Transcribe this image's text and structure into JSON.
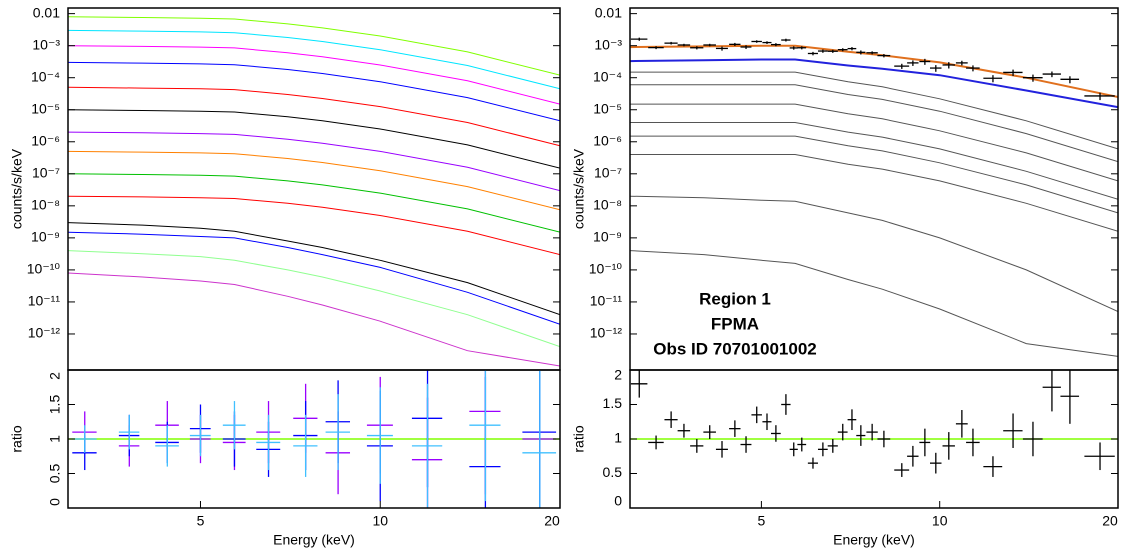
{
  "chart_data": [
    {
      "type": "line",
      "ylabel": "counts/s/keV",
      "log_x": true,
      "log_y": true,
      "xlim": [
        3,
        20
      ],
      "ylim": [
        7.5e-14,
        0.015
      ],
      "yticks": [
        0.01,
        {
          "value": 0.001,
          "label": "10⁻³"
        },
        {
          "value": 0.0001,
          "label": "10⁻⁴"
        },
        {
          "value": 1e-05,
          "label": "10⁻⁵"
        },
        {
          "value": 1e-06,
          "label": "10⁻⁶"
        },
        {
          "value": 1e-07,
          "label": "10⁻⁷"
        },
        {
          "value": 1e-08,
          "label": "10⁻⁸"
        },
        {
          "value": 1e-09,
          "label": "10⁻⁹"
        },
        {
          "value": 1e-10,
          "label": "10⁻¹⁰"
        },
        {
          "value": 1e-11,
          "label": "10⁻¹¹"
        },
        {
          "value": 1e-12,
          "label": "10⁻¹²"
        }
      ],
      "x": [
        3,
        4,
        5,
        5.7,
        7,
        8,
        10,
        14,
        20
      ],
      "series": [
        {
          "color": "#80ff00",
          "values": [
            0.008,
            0.0076,
            0.0072,
            0.0068,
            0.0048,
            0.0036,
            0.002,
            0.00064,
            0.00012
          ]
        },
        {
          "color": "#00e5ff",
          "values": [
            0.003,
            0.00285,
            0.0027,
            0.00255,
            0.0018,
            0.00135,
            0.00075,
            0.00024,
            4.5e-05
          ]
        },
        {
          "color": "#ff00ff",
          "values": [
            0.001,
            0.00095,
            0.0009,
            0.00085,
            0.0006,
            0.00045,
            0.00025,
            8e-05,
            1.5e-05
          ]
        },
        {
          "color": "#0000ff",
          "values": [
            0.0003,
            0.000285,
            0.00027,
            0.000255,
            0.00018,
            0.000135,
            7.5e-05,
            2.4e-05,
            4.5e-06
          ]
        },
        {
          "color": "#ff0000",
          "values": [
            5e-05,
            4.75e-05,
            4.5e-05,
            4.25e-05,
            3e-05,
            2.25e-05,
            1.25e-05,
            4e-06,
            7.5e-07
          ]
        },
        {
          "color": "#000000",
          "values": [
            1e-05,
            9.5e-06,
            9e-06,
            8.5e-06,
            6e-06,
            4.5e-06,
            2.5e-06,
            8e-07,
            1.5e-07
          ]
        },
        {
          "color": "#9900ff",
          "values": [
            2e-06,
            1.9e-06,
            1.8e-06,
            1.7e-06,
            1.2e-06,
            9e-07,
            5e-07,
            1.6e-07,
            3e-08
          ]
        },
        {
          "color": "#ff8000",
          "values": [
            5e-07,
            4.75e-07,
            4.5e-07,
            4.25e-07,
            3e-07,
            2.25e-07,
            1.25e-07,
            4e-08,
            7.5e-09
          ]
        },
        {
          "color": "#00c000",
          "values": [
            1e-07,
            9.5e-08,
            9e-08,
            8.5e-08,
            6e-08,
            4.5e-08,
            2.5e-08,
            8e-09,
            1.5e-09
          ]
        },
        {
          "color": "#ff0000",
          "values": [
            2e-08,
            1.9e-08,
            1.8e-08,
            1.7e-08,
            1.2e-08,
            9e-09,
            5e-09,
            1.6e-09,
            3e-10
          ]
        },
        {
          "color": "#000000",
          "values": [
            3e-09,
            2.5e-09,
            2e-09,
            1.6e-09,
            8e-10,
            5e-10,
            2e-10,
            4e-11,
            4e-12
          ]
        },
        {
          "color": "#0000ff",
          "values": [
            1.5e-09,
            1.3e-09,
            1.1e-09,
            1e-09,
            5e-10,
            3e-10,
            1.2e-10,
            2e-11,
            2e-12
          ]
        },
        {
          "color": "#90ff90",
          "values": [
            4e-10,
            3.2e-10,
            2.6e-10,
            2e-10,
            1e-10,
            6e-11,
            2.2e-11,
            4e-12,
            4e-13
          ]
        },
        {
          "color": "#cc33cc",
          "values": [
            8e-11,
            6e-11,
            4.5e-11,
            3.5e-11,
            1.5e-11,
            8e-12,
            2.5e-12,
            3e-13,
            1e-13
          ]
        }
      ]
    },
    {
      "type": "errorbar",
      "ylabel": "ratio",
      "xlabel": "Energy (keV)",
      "log_x": true,
      "xlim": [
        3,
        20
      ],
      "ylim": [
        0,
        2
      ],
      "yticks": [
        0,
        0.5,
        1,
        1.5,
        2
      ],
      "xticks": [
        5,
        10,
        20
      ],
      "reference": {
        "value": 1,
        "color": "#80ff00"
      },
      "x": [
        3.2,
        3.8,
        4.4,
        5,
        5.7,
        6.5,
        7.5,
        8.5,
        10,
        12,
        15,
        18.5
      ],
      "xerr": [
        0.15,
        0.15,
        0.2,
        0.2,
        0.25,
        0.3,
        0.35,
        0.4,
        0.5,
        0.7,
        0.9,
        1.2
      ],
      "series": [
        {
          "color": "#9900ff",
          "values": [
            1.1,
            0.9,
            1.2,
            1.0,
            0.95,
            1.1,
            1.3,
            0.8,
            1.2,
            0.7,
            1.4,
            1.0
          ],
          "errors": [
            0.3,
            0.3,
            0.35,
            0.35,
            0.4,
            0.45,
            0.5,
            0.6,
            0.7,
            0.9,
            1.2,
            1.5
          ]
        },
        {
          "color": "#0000ff",
          "values": [
            0.8,
            1.05,
            0.95,
            1.15,
            1.0,
            0.85,
            1.05,
            1.25,
            0.9,
            1.3,
            0.6,
            1.1
          ],
          "errors": [
            0.25,
            0.3,
            0.3,
            0.35,
            0.4,
            0.4,
            0.5,
            0.6,
            0.8,
            1.0,
            1.3,
            1.6
          ]
        },
        {
          "color": "#40c0ff",
          "values": [
            1.0,
            1.1,
            0.9,
            1.05,
            1.2,
            0.95,
            0.9,
            1.1,
            1.05,
            0.9,
            1.2,
            0.8
          ],
          "errors": [
            0.2,
            0.25,
            0.3,
            0.3,
            0.35,
            0.4,
            0.45,
            0.55,
            0.7,
            0.9,
            1.1,
            1.4
          ]
        }
      ]
    },
    {
      "type": "line",
      "ylabel": "counts/s/keV",
      "log_x": true,
      "log_y": true,
      "xlim": [
        3,
        20
      ],
      "ylim": [
        7.5e-14,
        0.015
      ],
      "yticks": [
        0.01,
        {
          "value": 0.001,
          "label": "10⁻³"
        },
        {
          "value": 0.0001,
          "label": "10⁻⁴"
        },
        {
          "value": 1e-05,
          "label": "10⁻⁵"
        },
        {
          "value": 1e-06,
          "label": "10⁻⁶"
        },
        {
          "value": 1e-07,
          "label": "10⁻⁷"
        },
        {
          "value": 1e-08,
          "label": "10⁻⁸"
        },
        {
          "value": 1e-09,
          "label": "10⁻⁹"
        },
        {
          "value": 1e-10,
          "label": "10⁻¹⁰"
        },
        {
          "value": 1e-11,
          "label": "10⁻¹¹"
        },
        {
          "value": 1e-12,
          "label": "10⁻¹²"
        }
      ],
      "annotations": [
        "Region 1",
        "FPMA",
        "Obs ID 70701001002"
      ],
      "x": [
        3,
        4,
        5,
        5.7,
        7,
        8,
        10,
        14,
        20
      ],
      "series": [
        {
          "color": "#555555",
          "values": [
            0.00015,
            0.00015,
            0.00015,
            0.00015,
            7.5e-05,
            5.2e-05,
            2.2e-05,
            4.5e-06,
            6e-07
          ]
        },
        {
          "color": "#555555",
          "values": [
            6e-05,
            6e-05,
            6e-05,
            6e-05,
            3e-05,
            2.1e-05,
            9e-06,
            1.8e-06,
            2.4e-07
          ]
        },
        {
          "color": "#555555",
          "values": [
            1.5e-05,
            1.5e-05,
            1.5e-05,
            1.5e-05,
            7.5e-06,
            5.2e-06,
            2.2e-06,
            4.5e-07,
            6e-08
          ]
        },
        {
          "color": "#555555",
          "values": [
            4e-06,
            4e-06,
            4e-06,
            4e-06,
            2e-06,
            1.4e-06,
            6e-07,
            1.2e-07,
            1.6e-08
          ]
        },
        {
          "color": "#555555",
          "values": [
            1.5e-06,
            1.5e-06,
            1.5e-06,
            1.5e-06,
            7.5e-07,
            5.2e-07,
            2.2e-07,
            4.5e-08,
            6e-09
          ]
        },
        {
          "color": "#555555",
          "values": [
            4e-07,
            4e-07,
            4e-07,
            4e-07,
            2e-07,
            1.4e-07,
            6e-08,
            1.2e-08,
            1.6e-09
          ]
        },
        {
          "color": "#555555",
          "values": [
            2e-08,
            1.8e-08,
            1.5e-08,
            1.4e-08,
            6e-09,
            3.5e-09,
            1e-09,
            1e-10,
            5e-12
          ]
        },
        {
          "color": "#555555",
          "values": [
            4e-10,
            3e-10,
            2e-10,
            1.6e-10,
            5e-11,
            2.5e-11,
            6e-12,
            5e-13,
            2e-13
          ]
        },
        {
          "color": "#2222dd",
          "values": [
            0.00033,
            0.00035,
            0.00037,
            0.00037,
            0.00024,
            0.00019,
            0.00012,
            4e-05,
            1.2e-05
          ]
        },
        {
          "color": "#e0701e",
          "values": [
            0.0009,
            0.00095,
            0.001,
            0.001,
            0.00065,
            0.0005,
            0.0003,
            0.0001,
            2.5e-05
          ]
        }
      ],
      "points": {
        "color": "#000000",
        "x": [
          3.11,
          3.32,
          3.52,
          3.7,
          3.89,
          4.09,
          4.29,
          4.51,
          4.71,
          4.91,
          5.11,
          5.29,
          5.5,
          5.67,
          5.85,
          6.11,
          6.35,
          6.6,
          6.86,
          7.11,
          7.36,
          7.69,
          8.05,
          8.63,
          9.01,
          9.44,
          9.85,
          10.36,
          10.9,
          11.38,
          12.3,
          13.3,
          14.37,
          15.47,
          16.59,
          18.65
        ],
        "xerr": [
          0.1,
          0.1,
          0.09,
          0.09,
          0.1,
          0.1,
          0.1,
          0.1,
          0.1,
          0.1,
          0.09,
          0.1,
          0.1,
          0.09,
          0.1,
          0.12,
          0.12,
          0.13,
          0.13,
          0.12,
          0.13,
          0.17,
          0.2,
          0.25,
          0.2,
          0.2,
          0.22,
          0.25,
          0.25,
          0.3,
          0.45,
          0.5,
          0.55,
          0.55,
          0.6,
          1.1
        ],
        "values": [
          0.0016,
          0.00087,
          0.0012,
          0.00105,
          0.00086,
          0.00105,
          0.00082,
          0.0011,
          0.00091,
          0.00135,
          0.00125,
          0.00108,
          0.0015,
          0.00085,
          0.00086,
          0.00057,
          0.00068,
          0.00067,
          0.00075,
          0.00081,
          0.00062,
          0.0006,
          0.00049,
          0.00023,
          0.00029,
          0.00032,
          0.0002,
          0.00025,
          0.00029,
          0.0002,
          9.6e-05,
          0.000146,
          0.0001,
          0.00013,
          8.9e-05,
          2.7e-05
        ],
        "errors": [
          0.00018,
          9e-05,
          0.00011,
          9.4e-05,
          9.5e-05,
          9.5e-05,
          0.00012,
          0.00012,
          0.00012,
          0.00012,
          0.00012,
          0.00012,
          0.00015,
          0.0001,
          9.3e-05,
          7e-05,
          8e-05,
          7.4e-05,
          8.2e-05,
          9.5e-05,
          8.9e-05,
          6.6e-05,
          5.9e-05,
          4.2e-05,
          5.7e-05,
          6.8e-05,
          4.7e-05,
          5.6e-05,
          4.8e-05,
          4.2e-05,
          2.4e-05,
          3.3e-05,
          2.5e-05,
          2.6e-05,
          2.2e-05,
          7e-06
        ]
      }
    },
    {
      "type": "errorbar",
      "ylabel": "ratio",
      "xlabel": "Energy (keV)",
      "log_x": true,
      "xlim": [
        3,
        20
      ],
      "ylim": [
        0,
        2
      ],
      "yticks": [
        0,
        0.5,
        1,
        1.5,
        2
      ],
      "xticks": [
        5,
        10,
        20
      ],
      "reference": {
        "value": 1,
        "color": "#80ff00"
      },
      "x": [
        3.11,
        3.32,
        3.52,
        3.7,
        3.89,
        4.09,
        4.29,
        4.51,
        4.71,
        4.91,
        5.11,
        5.29,
        5.5,
        5.67,
        5.85,
        6.11,
        6.35,
        6.6,
        6.86,
        7.11,
        7.36,
        7.69,
        8.05,
        8.63,
        9.01,
        9.44,
        9.85,
        10.36,
        10.9,
        11.38,
        12.3,
        13.3,
        14.37,
        15.47,
        16.59,
        18.65
      ],
      "xerr": [
        0.1,
        0.1,
        0.09,
        0.09,
        0.1,
        0.1,
        0.1,
        0.1,
        0.1,
        0.1,
        0.09,
        0.1,
        0.1,
        0.09,
        0.1,
        0.12,
        0.12,
        0.13,
        0.13,
        0.12,
        0.13,
        0.17,
        0.2,
        0.25,
        0.2,
        0.2,
        0.22,
        0.25,
        0.25,
        0.3,
        0.45,
        0.5,
        0.55,
        0.55,
        0.6,
        1.1
      ],
      "series": [
        {
          "color": "#000000",
          "values": [
            1.8,
            0.95,
            1.28,
            1.12,
            0.9,
            1.1,
            0.85,
            1.15,
            0.92,
            1.35,
            1.25,
            1.08,
            1.5,
            0.85,
            0.92,
            0.65,
            0.85,
            0.9,
            1.1,
            1.28,
            1.05,
            1.1,
            1.0,
            0.55,
            0.75,
            0.95,
            0.65,
            0.9,
            1.22,
            0.95,
            0.6,
            1.12,
            1.0,
            1.75,
            1.62,
            0.75
          ],
          "errors": [
            0.2,
            0.1,
            0.12,
            0.1,
            0.1,
            0.1,
            0.12,
            0.12,
            0.12,
            0.12,
            0.12,
            0.12,
            0.15,
            0.1,
            0.1,
            0.08,
            0.1,
            0.1,
            0.12,
            0.15,
            0.15,
            0.12,
            0.12,
            0.1,
            0.15,
            0.2,
            0.15,
            0.2,
            0.2,
            0.2,
            0.15,
            0.25,
            0.25,
            0.35,
            0.4,
            0.2
          ]
        }
      ]
    }
  ]
}
